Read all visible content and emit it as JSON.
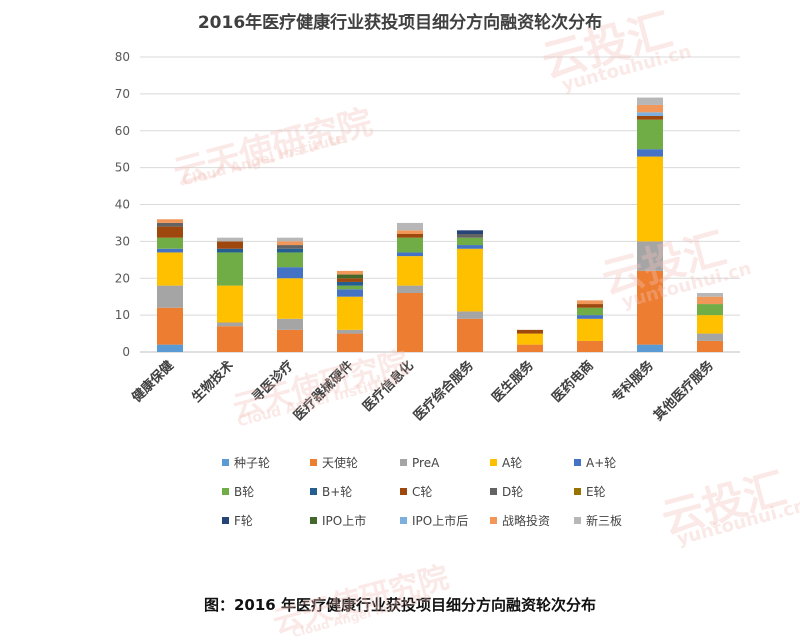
{
  "caption": "图：2016 年医疗健康行业获投项目细分方向融资轮次分布",
  "watermarks": [
    {
      "text": "云投汇"
    },
    {
      "text": "yuntouhui.cn"
    },
    {
      "text": "云天使研究院"
    },
    {
      "text": "Cloud Angel Institute"
    },
    {
      "text": "云投汇"
    },
    {
      "text": "yuntouhui.cn"
    },
    {
      "text": "云天使研究院"
    },
    {
      "text": "Cloud Angel Institute"
    },
    {
      "text": "云投汇"
    },
    {
      "text": "yuntouhui.cn"
    },
    {
      "text": "云天使研究院"
    },
    {
      "text": "Cloud Angel Institute"
    }
  ],
  "chart_data": {
    "type": "bar",
    "stacked": true,
    "title": "2016年医疗健康行业获投项目细分方向融资轮次分布",
    "xlabel": "",
    "ylabel": "",
    "ylim": [
      0,
      80
    ],
    "yticks": [
      0,
      10,
      20,
      30,
      40,
      50,
      60,
      70,
      80
    ],
    "grid": true,
    "legend_position": "bottom",
    "categories": [
      "健康保健",
      "生物技术",
      "寻医诊疗",
      "医疗器械硬件",
      "医疗信息化",
      "医疗综合服务",
      "医生服务",
      "医药电商",
      "专科服务",
      "其他医疗服务"
    ],
    "series": [
      {
        "name": "种子轮",
        "color": "#5b9bd5",
        "values": [
          2,
          0,
          0,
          0,
          0,
          0,
          0,
          0,
          2,
          0
        ]
      },
      {
        "name": "天使轮",
        "color": "#ed7d31",
        "values": [
          10,
          7,
          6,
          5,
          16,
          9,
          2,
          3,
          20,
          3
        ]
      },
      {
        "name": "PreA",
        "color": "#a5a5a5",
        "values": [
          6,
          1,
          3,
          1,
          2,
          2,
          0,
          0,
          8,
          2
        ]
      },
      {
        "name": "A轮",
        "color": "#ffc000",
        "values": [
          9,
          10,
          11,
          9,
          8,
          17,
          3,
          6,
          23,
          5
        ]
      },
      {
        "name": "A+轮",
        "color": "#4472c4",
        "values": [
          1,
          0,
          3,
          2,
          1,
          1,
          0,
          1,
          2,
          0
        ]
      },
      {
        "name": "B轮",
        "color": "#70ad47",
        "values": [
          3,
          9,
          4,
          1,
          4,
          2,
          0,
          2,
          8,
          3
        ]
      },
      {
        "name": "B+轮",
        "color": "#255e91",
        "values": [
          0,
          1,
          1,
          1,
          0,
          0,
          0,
          0,
          0,
          0
        ]
      },
      {
        "name": "C轮",
        "color": "#9e480e",
        "values": [
          3,
          2,
          0,
          1,
          1,
          0,
          1,
          1,
          1,
          0
        ]
      },
      {
        "name": "D轮",
        "color": "#636363",
        "values": [
          1,
          0,
          1,
          0,
          0,
          1,
          0,
          0,
          0,
          0
        ]
      },
      {
        "name": "E轮",
        "color": "#997300",
        "values": [
          0,
          0,
          0,
          0,
          0,
          0,
          0,
          0,
          0,
          0
        ]
      },
      {
        "name": "F轮",
        "color": "#264478",
        "values": [
          0,
          0,
          0,
          0,
          0,
          1,
          0,
          0,
          0,
          0
        ]
      },
      {
        "name": "IPO上市",
        "color": "#43682b",
        "values": [
          0,
          0,
          0,
          1,
          0,
          0,
          0,
          0,
          0,
          0
        ]
      },
      {
        "name": "IPO上市后",
        "color": "#7cafdd",
        "values": [
          0,
          0,
          0,
          0,
          0,
          0,
          0,
          0,
          1,
          0
        ]
      },
      {
        "name": "战略投资",
        "color": "#f1975a",
        "values": [
          1,
          0,
          1,
          1,
          1,
          0,
          0,
          1,
          2,
          2
        ]
      },
      {
        "name": "新三板",
        "color": "#b7b7b7",
        "values": [
          0,
          1,
          1,
          0,
          2,
          0,
          0,
          0,
          2,
          1
        ]
      }
    ]
  }
}
